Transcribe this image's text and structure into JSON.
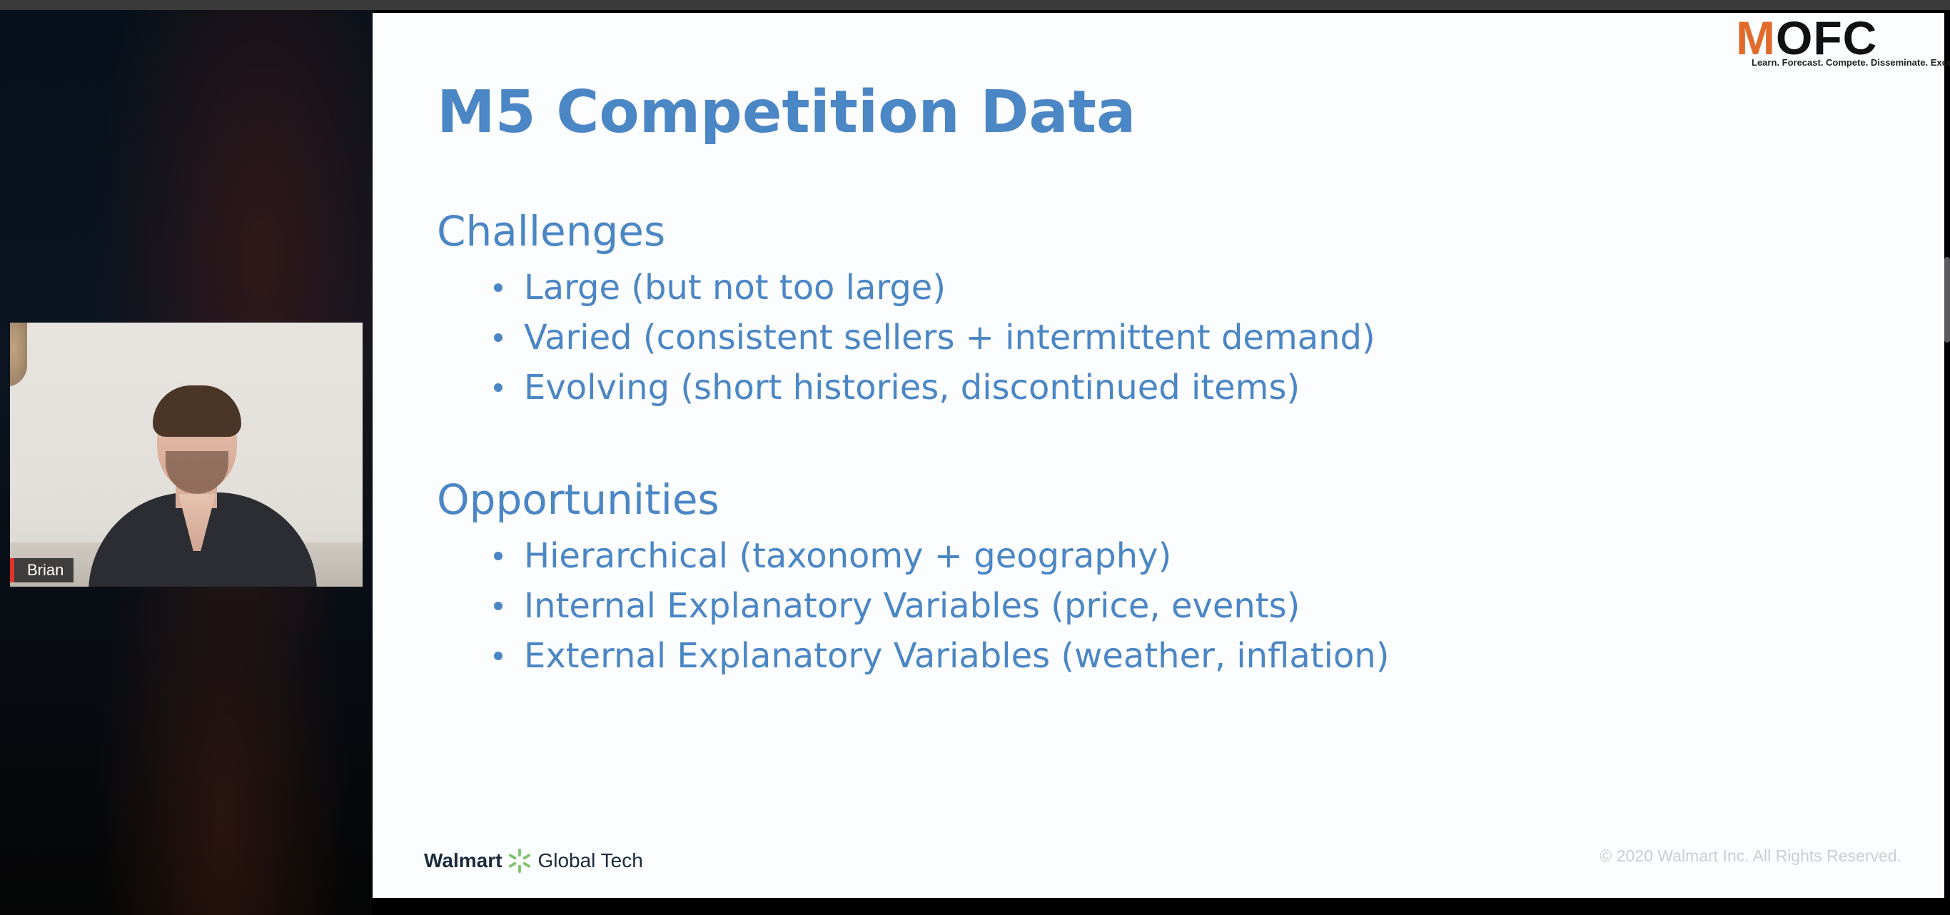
{
  "slide": {
    "title": "M5 Competition Data",
    "sections": [
      {
        "heading": "Challenges",
        "bullets": [
          "Large (but not too large)",
          "Varied (consistent sellers + intermittent demand)",
          "Evolving (short histories, discontinued items)"
        ]
      },
      {
        "heading": "Opportunities",
        "bullets": [
          "Hierarchical (taxonomy + geography)",
          "Internal Explanatory Variables (price, events)",
          "External Explanatory Variables (weather, inflation)"
        ]
      }
    ],
    "footer": {
      "brand": "Walmart",
      "brand_suffix": "Global Tech",
      "copyright": "© 2020 Walmart Inc. All Rights Reserved."
    },
    "logo": {
      "m": "M",
      "rest": "OFC",
      "tagline": "Learn. Forecast. Compete. Disseminate. Excel."
    }
  },
  "video": {
    "participant_name": "Brian"
  },
  "colors": {
    "slide_text": "#4b86c5",
    "logo_accent": "#e26b2c",
    "name_tag_accent": "#e0332e"
  },
  "icons": {
    "brand_mark": "walmart-spark-icon"
  }
}
